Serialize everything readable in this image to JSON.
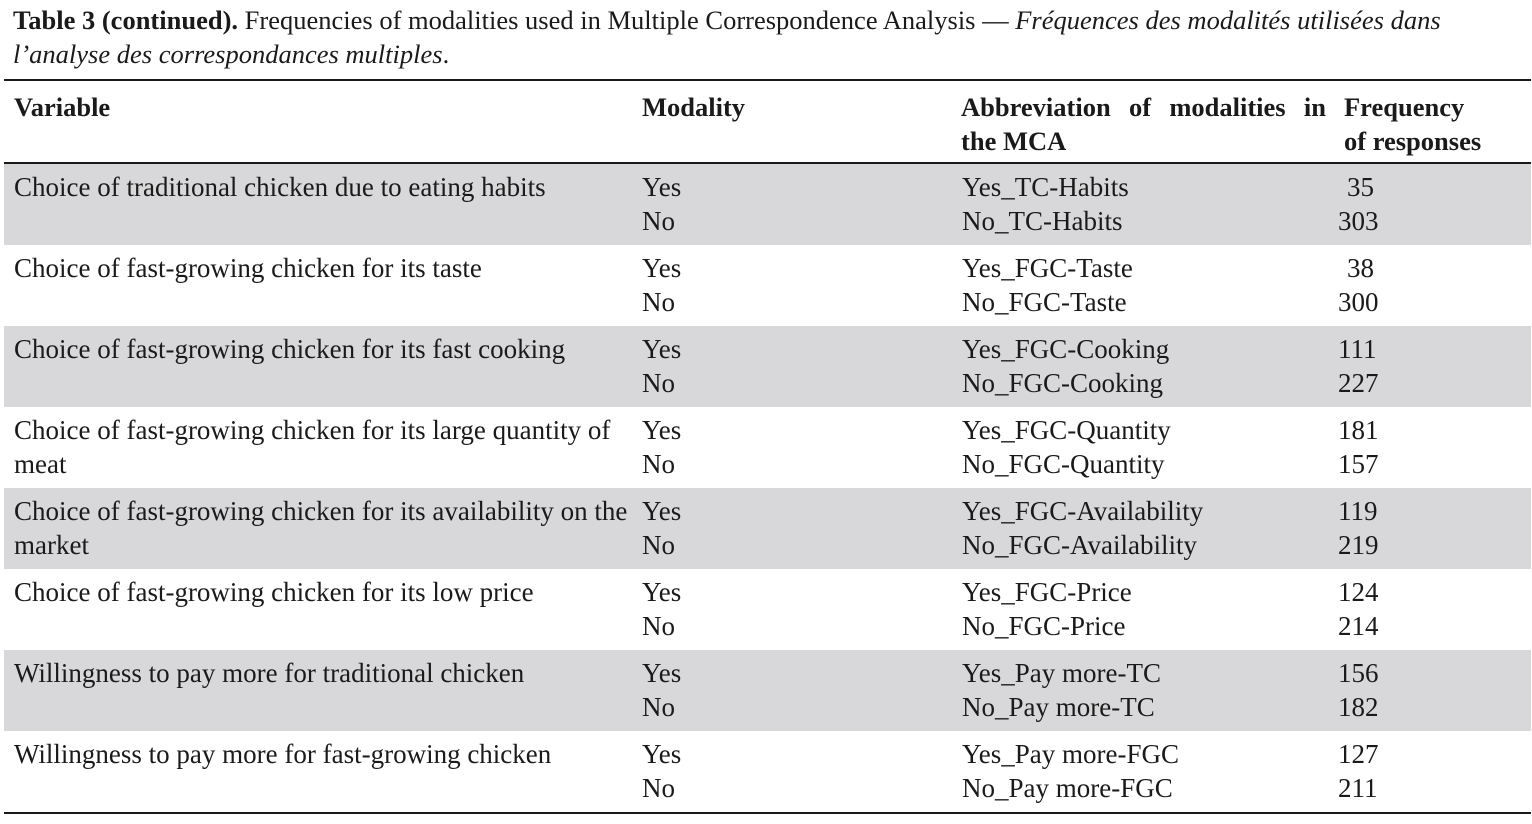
{
  "caption": {
    "label": "Table 3 (continued).",
    "english": " Frequencies of modalities used in Multiple Correspondence Analysis — ",
    "french": "Fréquences des modalités utilisées dans l’analyse des correspondances multiples",
    "end": "."
  },
  "headers": {
    "variable": "Variable",
    "modality": "Modality",
    "abbreviation": "Abbreviation of modalities in the MCA",
    "frequency_line1": "Frequency",
    "frequency_line2": "of responses"
  },
  "rows": [
    {
      "variable": "Choice of traditional chicken due to eating habits",
      "modalities": [
        "Yes",
        "No"
      ],
      "abbreviations": [
        "Yes_TC-Habits",
        "No_TC-Habits"
      ],
      "frequencies": [
        "35",
        "303"
      ]
    },
    {
      "variable": "Choice of fast-growing chicken for its taste",
      "modalities": [
        "Yes",
        "No"
      ],
      "abbreviations": [
        "Yes_FGC-Taste",
        "No_FGC-Taste"
      ],
      "frequencies": [
        "38",
        "300"
      ]
    },
    {
      "variable": "Choice of fast-growing chicken for its fast cooking",
      "modalities": [
        "Yes",
        "No"
      ],
      "abbreviations": [
        "Yes_FGC-Cooking",
        "No_FGC-Cooking"
      ],
      "frequencies": [
        "111",
        "227"
      ]
    },
    {
      "variable": "Choice of fast-growing chicken for its large quantity of meat",
      "modalities": [
        "Yes",
        "No"
      ],
      "abbreviations": [
        "Yes_FGC-Quantity",
        "No_FGC-Quantity"
      ],
      "frequencies": [
        "181",
        "157"
      ]
    },
    {
      "variable": "Choice of fast-growing chicken for its availability on the market",
      "modalities": [
        "Yes",
        "No"
      ],
      "abbreviations": [
        "Yes_FGC-Availability",
        "No_FGC-Availability"
      ],
      "frequencies": [
        "119",
        "219"
      ]
    },
    {
      "variable": "Choice of fast-growing chicken for its low price",
      "modalities": [
        "Yes",
        "No"
      ],
      "abbreviations": [
        "Yes_FGC-Price",
        "No_FGC-Price"
      ],
      "frequencies": [
        "124",
        "214"
      ]
    },
    {
      "variable": "Willingness to pay more for traditional chicken",
      "modalities": [
        "Yes",
        "No"
      ],
      "abbreviations": [
        "Yes_Pay more-TC",
        "No_Pay more-TC"
      ],
      "frequencies": [
        "156",
        "182"
      ]
    },
    {
      "variable": "Willingness to pay more for fast-growing chicken",
      "modalities": [
        "Yes",
        "No"
      ],
      "abbreviations": [
        "Yes_Pay more-FGC",
        "No_Pay more-FGC"
      ],
      "frequencies": [
        "127",
        "211"
      ]
    }
  ]
}
